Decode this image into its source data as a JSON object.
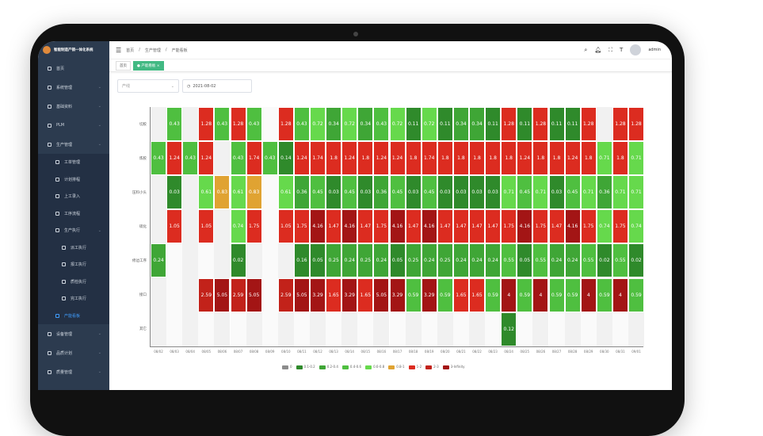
{
  "app": {
    "title": "智能制造产销一体化系统"
  },
  "sidebar": {
    "items": [
      {
        "label": "首页",
        "icon": "home-icon"
      },
      {
        "label": "系统管理",
        "icon": "gear-icon"
      },
      {
        "label": "基础资料",
        "icon": "database-icon"
      },
      {
        "label": "PLM",
        "icon": "plm-icon"
      },
      {
        "label": "生产管理",
        "icon": "factory-icon",
        "expanded": true
      }
    ],
    "production_items": [
      "工单管理",
      "计划排程",
      "上工录入",
      "工序流程",
      "生产执行"
    ],
    "execution_items": [
      "派工执行",
      "报工执行",
      "质检执行",
      "完工执行"
    ],
    "active_item": "产能看板",
    "bottom_items": [
      "设备管理",
      "品质计划",
      "质量管理"
    ]
  },
  "header": {
    "breadcrumb": [
      "首页",
      "生产管理",
      "产能看板"
    ],
    "user": "admin"
  },
  "tags": [
    "首页",
    "产能看板"
  ],
  "filters": {
    "line_placeholder": "产线",
    "date": "2021-08-02"
  },
  "chart_data": {
    "type": "heatmap",
    "x": [
      "08/02",
      "08/03",
      "08/04",
      "08/05",
      "08/06",
      "08/07",
      "08/08",
      "08/09",
      "08/10",
      "08/11",
      "08/12",
      "08/13",
      "08/14",
      "08/15",
      "08/16",
      "08/17",
      "08/18",
      "08/19",
      "08/20",
      "08/21",
      "08/22",
      "08/23",
      "08/24",
      "08/25",
      "08/26",
      "08/27",
      "08/28",
      "08/29",
      "08/30",
      "08/31",
      "09/01"
    ],
    "y": [
      "切胶",
      "炼胶",
      "压料小头",
      "硫化",
      "修边工序",
      "接口",
      "其它"
    ],
    "values": [
      [
        null,
        0.43,
        null,
        1.28,
        0.43,
        1.28,
        0.43,
        null,
        1.28,
        0.43,
        0.72,
        0.34,
        0.72,
        0.34,
        0.43,
        0.72,
        0.11,
        0.72,
        0.11,
        0.34,
        0.34,
        0.11,
        1.28,
        0.11,
        1.28,
        0.11,
        0.11,
        1.28,
        null,
        1.28,
        1.28
      ],
      [
        0.43,
        1.24,
        0.43,
        1.24,
        null,
        0.43,
        1.74,
        0.43,
        0.14,
        1.24,
        1.74,
        1.8,
        1.24,
        1.8,
        1.24,
        1.24,
        1.8,
        1.74,
        1.8,
        1.8,
        1.8,
        1.8,
        1.8,
        1.24,
        1.8,
        1.8,
        1.24,
        1.8,
        0.71,
        1.8,
        0.71
      ],
      [
        null,
        0.03,
        null,
        0.61,
        0.83,
        0.61,
        0.83,
        null,
        0.61,
        0.36,
        0.45,
        0.03,
        0.45,
        0.03,
        0.36,
        0.45,
        0.03,
        0.45,
        0.03,
        0.03,
        0.03,
        0.03,
        0.71,
        0.45,
        0.71,
        0.03,
        0.45,
        0.71,
        0.36,
        0.71,
        0.71
      ],
      [
        null,
        1.05,
        null,
        1.05,
        null,
        0.74,
        1.75,
        null,
        1.05,
        1.75,
        4.16,
        1.47,
        4.16,
        1.47,
        1.75,
        4.16,
        1.47,
        4.16,
        1.47,
        1.47,
        1.47,
        1.47,
        1.75,
        4.16,
        1.75,
        1.47,
        4.16,
        1.75,
        0.74,
        1.75,
        0.74
      ],
      [
        0.24,
        null,
        null,
        null,
        null,
        0.02,
        null,
        null,
        null,
        0.16,
        0.05,
        0.25,
        0.24,
        0.25,
        0.24,
        0.05,
        0.25,
        0.24,
        0.25,
        0.24,
        0.24,
        0.24,
        0.55,
        0.05,
        0.55,
        0.24,
        0.24,
        0.55,
        0.02,
        0.55,
        0.02
      ],
      [
        null,
        null,
        null,
        2.59,
        5.05,
        2.59,
        5.05,
        null,
        2.59,
        5.05,
        3.29,
        1.65,
        3.29,
        1.65,
        5.05,
        3.29,
        0.59,
        3.29,
        0.59,
        1.65,
        1.65,
        0.59,
        4.0,
        0.59,
        4.0,
        0.59,
        0.59,
        4.0,
        0.59,
        4.0,
        0.59
      ],
      [
        null,
        null,
        null,
        null,
        null,
        null,
        null,
        null,
        null,
        null,
        null,
        null,
        null,
        null,
        null,
        null,
        null,
        null,
        null,
        null,
        null,
        null,
        0.12,
        null,
        null,
        null,
        null,
        null,
        null,
        null,
        null
      ]
    ],
    "legend": [
      {
        "label": "0",
        "color": "#8c8c8c"
      },
      {
        "label": "0.1-0.2",
        "color": "#2f8a2b"
      },
      {
        "label": "0.2-0.4",
        "color": "#3fa636"
      },
      {
        "label": "0.4-0.6",
        "color": "#4fbf40"
      },
      {
        "label": "0.6-0.8",
        "color": "#66d94c"
      },
      {
        "label": "0.8-1",
        "color": "#e0a332"
      },
      {
        "label": "1-2",
        "color": "#dc2c20"
      },
      {
        "label": "2-3",
        "color": "#c2221a"
      },
      {
        "label": "3-Infinity",
        "color": "#a31515"
      }
    ],
    "legend_position": "bottom"
  }
}
